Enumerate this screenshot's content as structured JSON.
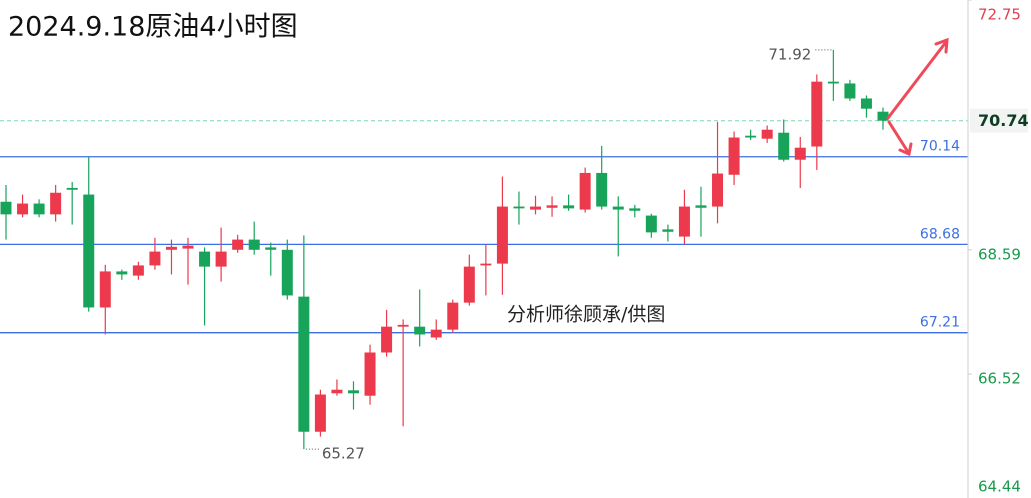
{
  "chart_data": {
    "type": "candlestick",
    "title": "2024.9.18原油4小时图",
    "watermark": "分析师徐顾承/供图",
    "up_color": "#ec3a4c",
    "down_color": "#17a45a",
    "level_color": "#3d6fe3",
    "ylim": [
      64.44,
      72.75
    ],
    "yticks": [
      64.44,
      66.52,
      68.59,
      72.75
    ],
    "last_price": 70.74,
    "levels": [
      70.14,
      68.68,
      67.21
    ],
    "max_label": 71.92,
    "min_label": 65.27,
    "open": [
      69.39,
      69.18,
      69.36,
      69.18,
      69.62,
      69.51,
      67.63,
      68.23,
      68.16,
      68.33,
      68.59,
      68.61,
      68.56,
      68.31,
      68.59,
      68.76,
      68.63,
      68.59,
      67.81,
      65.56,
      66.2,
      66.25,
      66.16,
      66.88,
      67.31,
      67.31,
      67.13,
      67.26,
      67.71,
      68.33,
      68.36,
      69.31,
      69.26,
      69.29,
      69.33,
      69.26,
      69.87,
      69.31,
      69.28,
      69.16,
      68.93,
      68.81,
      69.33,
      69.31,
      69.84,
      70.49,
      70.44,
      70.54,
      70.09,
      70.31,
      71.39,
      71.36,
      71.11,
      70.89
    ],
    "high": [
      69.67,
      69.51,
      69.43,
      69.67,
      69.72,
      70.14,
      68.34,
      68.26,
      68.39,
      68.79,
      68.76,
      68.79,
      68.63,
      68.96,
      68.84,
      69.06,
      68.71,
      68.76,
      68.83,
      66.26,
      66.43,
      66.4,
      67.01,
      67.59,
      67.43,
      67.93,
      67.43,
      67.76,
      68.51,
      68.68,
      69.81,
      69.56,
      69.49,
      69.48,
      69.51,
      69.96,
      70.32,
      69.48,
      69.34,
      69.19,
      69.01,
      69.59,
      69.64,
      70.72,
      70.56,
      70.59,
      70.66,
      70.76,
      70.47,
      71.51,
      71.92,
      71.42,
      71.16,
      70.96
    ],
    "low": [
      68.76,
      69.13,
      69.13,
      69.06,
      69.01,
      67.56,
      67.18,
      68.09,
      68.09,
      68.26,
      68.18,
      68.01,
      67.33,
      68.06,
      68.54,
      68.51,
      68.16,
      67.76,
      65.27,
      65.48,
      66.16,
      65.93,
      66.01,
      66.81,
      65.65,
      66.98,
      67.09,
      67.21,
      67.66,
      67.83,
      67.84,
      69.01,
      69.18,
      69.14,
      69.24,
      69.21,
      69.26,
      68.48,
      69.13,
      68.79,
      68.73,
      68.68,
      68.81,
      69.03,
      69.67,
      70.42,
      70.37,
      70.06,
      69.62,
      69.92,
      71.07,
      71.07,
      70.79,
      70.59
    ],
    "close": [
      69.18,
      69.36,
      69.18,
      69.54,
      69.59,
      67.63,
      68.23,
      68.18,
      68.33,
      68.56,
      68.64,
      68.66,
      68.31,
      68.56,
      68.76,
      68.59,
      68.59,
      67.83,
      65.56,
      66.18,
      66.26,
      66.2,
      66.88,
      67.31,
      67.34,
      67.18,
      67.26,
      67.71,
      68.31,
      68.36,
      69.31,
      69.28,
      69.31,
      69.33,
      69.28,
      69.87,
      69.31,
      69.26,
      69.24,
      68.88,
      68.89,
      69.31,
      69.29,
      69.86,
      70.46,
      70.46,
      70.59,
      70.09,
      70.29,
      71.39,
      71.36,
      71.11,
      70.94,
      70.74
    ]
  }
}
